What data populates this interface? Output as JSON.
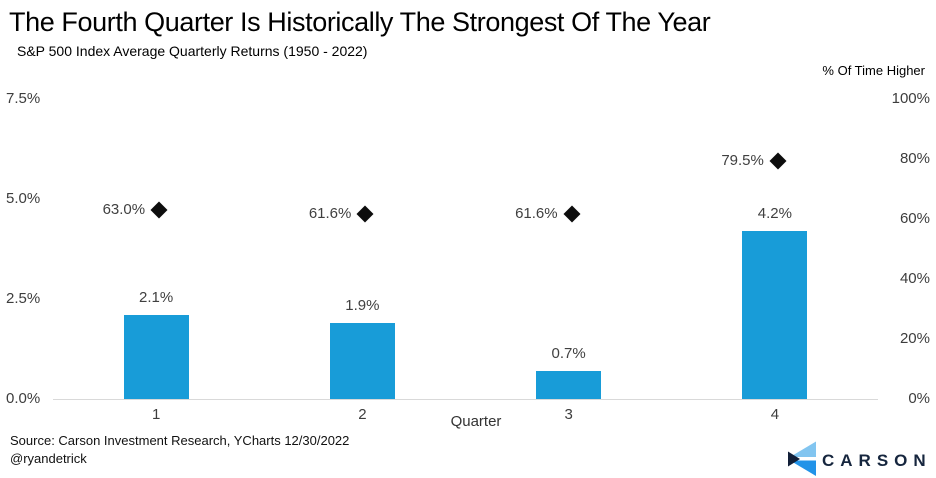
{
  "header": {
    "title": "The Fourth Quarter Is Historically The Strongest Of The Year",
    "subtitle": "S&P 500 Index Average Quarterly Returns (1950 - 2022)"
  },
  "footer": {
    "source": "Source: Carson Investment Research, YCharts 12/30/2022",
    "handle": "@ryandetrick"
  },
  "logo": {
    "text": "CARSON",
    "navy": "#16263e",
    "wedge_navy": "#121f38",
    "light_blue": "#82c5f0",
    "mid_blue": "#2293e8"
  },
  "colors": {
    "bar": "#189cd8",
    "marker": "#0d0d0d",
    "axis_text": "#3d3d3d",
    "label_text": "#404040",
    "baseline": "#d9d9d9",
    "background": "#ffffff"
  },
  "chart_data": {
    "type": "bar",
    "title": "The Fourth Quarter Is Historically The Strongest Of The Year",
    "subtitle": "S&P 500 Index Average Quarterly Returns (1950 - 2022)",
    "categories": [
      "1",
      "2",
      "3",
      "4"
    ],
    "xlabel": "Quarter",
    "series": [
      {
        "name": "S&P 500 Average Quarterly Return",
        "type": "bar",
        "axis": "left",
        "values": [
          2.1,
          1.9,
          0.7,
          4.2
        ],
        "labels": [
          "2.1%",
          "1.9%",
          "0.7%",
          "4.2%"
        ]
      },
      {
        "name": "% Of Time Higher",
        "type": "scatter",
        "marker": "diamond",
        "axis": "right",
        "values": [
          63.0,
          61.6,
          61.6,
          79.5
        ],
        "labels": [
          "63.0%",
          "61.6%",
          "61.6%",
          "79.5%"
        ]
      }
    ],
    "left_axis": {
      "ticks": [
        "0.0%",
        "2.5%",
        "5.0%",
        "7.5%"
      ],
      "range": [
        0,
        7.5
      ]
    },
    "right_axis": {
      "title": "% Of Time Higher",
      "ticks": [
        "0%",
        "20%",
        "40%",
        "60%",
        "80%",
        "100%"
      ],
      "range": [
        0,
        100
      ]
    },
    "grid": false,
    "legend": "none"
  }
}
